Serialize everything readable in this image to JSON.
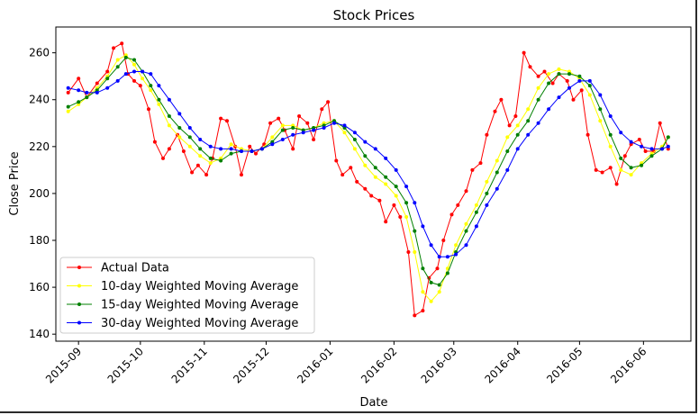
{
  "chart_data": {
    "type": "line",
    "title": "Stock Prices",
    "xlabel": "Date",
    "ylabel": "Close Price",
    "x_ticks": [
      "2015-09",
      "2015-10",
      "2015-11",
      "2015-12",
      "2016-01",
      "2016-02",
      "2016-03",
      "2016-04",
      "2016-05",
      "2016-06"
    ],
    "y_ticks": [
      140,
      160,
      180,
      200,
      220,
      240,
      260
    ],
    "ylim": [
      137,
      271
    ],
    "xlim": [
      "2015-08-21",
      "2016-06-24"
    ],
    "grid": false,
    "legend_position": "lower-left",
    "series": [
      {
        "name": "Actual Data",
        "color": "#ff0000",
        "x": [
          "2015-08-27",
          "2015-09-01",
          "2015-09-05",
          "2015-09-10",
          "2015-09-15",
          "2015-09-18",
          "2015-09-22",
          "2015-09-25",
          "2015-09-28",
          "2015-10-01",
          "2015-10-05",
          "2015-10-08",
          "2015-10-12",
          "2015-10-15",
          "2015-10-19",
          "2015-10-22",
          "2015-10-26",
          "2015-10-29",
          "2015-11-02",
          "2015-11-05",
          "2015-11-09",
          "2015-11-12",
          "2015-11-16",
          "2015-11-19",
          "2015-11-23",
          "2015-11-26",
          "2015-11-30",
          "2015-12-03",
          "2015-12-07",
          "2015-12-10",
          "2015-12-14",
          "2015-12-17",
          "2015-12-21",
          "2015-12-24",
          "2015-12-28",
          "2015-12-31",
          "2016-01-04",
          "2016-01-07",
          "2016-01-11",
          "2016-01-14",
          "2016-01-18",
          "2016-01-21",
          "2016-01-25",
          "2016-01-28",
          "2016-02-01",
          "2016-02-04",
          "2016-02-08",
          "2016-02-11",
          "2016-02-15",
          "2016-02-18",
          "2016-02-22",
          "2016-02-25",
          "2016-02-29",
          "2016-03-03",
          "2016-03-07",
          "2016-03-10",
          "2016-03-14",
          "2016-03-17",
          "2016-03-21",
          "2016-03-24",
          "2016-03-28",
          "2016-03-31",
          "2016-04-04",
          "2016-04-07",
          "2016-04-11",
          "2016-04-14",
          "2016-04-18",
          "2016-04-21",
          "2016-04-25",
          "2016-04-28",
          "2016-05-02",
          "2016-05-05",
          "2016-05-09",
          "2016-05-12",
          "2016-05-16",
          "2016-05-19",
          "2016-05-23",
          "2016-05-26",
          "2016-05-30",
          "2016-06-02",
          "2016-06-06",
          "2016-06-09",
          "2016-06-13"
        ],
        "values": [
          243,
          249,
          241,
          247,
          252,
          262,
          264,
          251,
          248,
          246,
          236,
          222,
          215,
          219,
          225,
          218,
          209,
          212,
          208,
          215,
          232,
          231,
          220,
          208,
          220,
          217,
          221,
          230,
          232,
          227,
          219,
          233,
          230,
          223,
          236,
          239,
          214,
          208,
          211,
          205,
          202,
          199,
          197,
          188,
          195,
          190,
          175,
          148,
          150,
          164,
          168,
          180,
          191,
          195,
          201,
          210,
          213,
          225,
          235,
          240,
          229,
          233,
          260,
          254,
          250,
          252,
          247,
          251,
          248,
          240,
          244,
          225,
          210,
          209,
          211,
          204,
          216,
          221,
          223,
          218,
          218,
          230,
          219
        ]
      },
      {
        "name": "10-day Weighted Moving Average",
        "color": "#ffff00",
        "x": [
          "2015-08-27",
          "2015-09-01",
          "2015-09-05",
          "2015-09-10",
          "2015-09-15",
          "2015-09-20",
          "2015-09-24",
          "2015-09-28",
          "2015-10-02",
          "2015-10-06",
          "2015-10-10",
          "2015-10-15",
          "2015-10-20",
          "2015-10-25",
          "2015-10-30",
          "2015-11-04",
          "2015-11-09",
          "2015-11-14",
          "2015-11-19",
          "2015-11-24",
          "2015-11-29",
          "2015-12-04",
          "2015-12-09",
          "2015-12-14",
          "2015-12-19",
          "2015-12-24",
          "2015-12-29",
          "2016-01-03",
          "2016-01-08",
          "2016-01-13",
          "2016-01-18",
          "2016-01-23",
          "2016-01-28",
          "2016-02-02",
          "2016-02-07",
          "2016-02-11",
          "2016-02-15",
          "2016-02-19",
          "2016-02-23",
          "2016-02-27",
          "2016-03-02",
          "2016-03-07",
          "2016-03-12",
          "2016-03-17",
          "2016-03-22",
          "2016-03-27",
          "2016-04-01",
          "2016-04-06",
          "2016-04-11",
          "2016-04-16",
          "2016-04-21",
          "2016-04-26",
          "2016-05-01",
          "2016-05-06",
          "2016-05-11",
          "2016-05-16",
          "2016-05-21",
          "2016-05-26",
          "2016-05-31",
          "2016-06-05",
          "2016-06-10",
          "2016-06-13"
        ],
        "values": [
          235,
          238,
          241,
          245,
          250,
          257,
          259,
          255,
          249,
          244,
          238,
          229,
          224,
          220,
          216,
          213,
          215,
          221,
          219,
          218,
          219,
          224,
          229,
          229,
          227,
          228,
          230,
          231,
          226,
          219,
          212,
          207,
          204,
          199,
          190,
          175,
          158,
          154,
          158,
          168,
          178,
          187,
          195,
          205,
          214,
          224,
          229,
          236,
          245,
          251,
          253,
          252,
          249,
          242,
          231,
          220,
          210,
          208,
          213,
          217,
          220,
          224
        ]
      },
      {
        "name": "15-day Weighted Moving Average",
        "color": "#008000",
        "x": [
          "2015-08-27",
          "2015-09-01",
          "2015-09-05",
          "2015-09-10",
          "2015-09-15",
          "2015-09-20",
          "2015-09-24",
          "2015-09-28",
          "2015-10-02",
          "2015-10-06",
          "2015-10-10",
          "2015-10-15",
          "2015-10-20",
          "2015-10-25",
          "2015-10-30",
          "2015-11-04",
          "2015-11-09",
          "2015-11-14",
          "2015-11-19",
          "2015-11-24",
          "2015-11-29",
          "2015-12-04",
          "2015-12-09",
          "2015-12-14",
          "2015-12-19",
          "2015-12-24",
          "2015-12-29",
          "2016-01-03",
          "2016-01-08",
          "2016-01-13",
          "2016-01-18",
          "2016-01-23",
          "2016-01-28",
          "2016-02-02",
          "2016-02-07",
          "2016-02-11",
          "2016-02-15",
          "2016-02-19",
          "2016-02-23",
          "2016-02-27",
          "2016-03-02",
          "2016-03-07",
          "2016-03-12",
          "2016-03-17",
          "2016-03-22",
          "2016-03-27",
          "2016-04-01",
          "2016-04-06",
          "2016-04-11",
          "2016-04-16",
          "2016-04-21",
          "2016-04-26",
          "2016-05-01",
          "2016-05-06",
          "2016-05-11",
          "2016-05-16",
          "2016-05-21",
          "2016-05-26",
          "2016-05-31",
          "2016-06-05",
          "2016-06-10",
          "2016-06-13"
        ],
        "values": [
          237,
          239,
          241,
          244,
          249,
          254,
          258,
          257,
          252,
          246,
          240,
          233,
          228,
          224,
          219,
          215,
          214,
          217,
          218,
          218,
          219,
          222,
          227,
          228,
          227,
          228,
          229,
          231,
          228,
          223,
          216,
          211,
          207,
          203,
          196,
          184,
          168,
          162,
          161,
          166,
          175,
          184,
          192,
          200,
          209,
          218,
          225,
          231,
          240,
          247,
          251,
          251,
          250,
          246,
          236,
          225,
          215,
          211,
          212,
          216,
          219,
          224
        ]
      },
      {
        "name": "30-day Weighted Moving Average",
        "color": "#0000ff",
        "x": [
          "2015-08-27",
          "2015-09-01",
          "2015-09-05",
          "2015-09-10",
          "2015-09-15",
          "2015-09-20",
          "2015-09-24",
          "2015-09-28",
          "2015-10-02",
          "2015-10-06",
          "2015-10-10",
          "2015-10-15",
          "2015-10-20",
          "2015-10-25",
          "2015-10-30",
          "2015-11-04",
          "2015-11-09",
          "2015-11-14",
          "2015-11-19",
          "2015-11-24",
          "2015-11-29",
          "2015-12-04",
          "2015-12-09",
          "2015-12-14",
          "2015-12-19",
          "2015-12-24",
          "2015-12-29",
          "2016-01-03",
          "2016-01-08",
          "2016-01-13",
          "2016-01-18",
          "2016-01-23",
          "2016-01-28",
          "2016-02-02",
          "2016-02-07",
          "2016-02-11",
          "2016-02-15",
          "2016-02-19",
          "2016-02-23",
          "2016-02-27",
          "2016-03-02",
          "2016-03-07",
          "2016-03-12",
          "2016-03-17",
          "2016-03-22",
          "2016-03-27",
          "2016-04-01",
          "2016-04-06",
          "2016-04-11",
          "2016-04-16",
          "2016-04-21",
          "2016-04-26",
          "2016-05-01",
          "2016-05-06",
          "2016-05-11",
          "2016-05-16",
          "2016-05-21",
          "2016-05-26",
          "2016-05-31",
          "2016-06-05",
          "2016-06-10",
          "2016-06-13"
        ],
        "values": [
          245,
          244,
          243,
          243,
          245,
          248,
          251,
          252,
          252,
          251,
          246,
          240,
          234,
          228,
          223,
          220,
          219,
          219,
          218,
          218,
          219,
          221,
          223,
          225,
          226,
          227,
          228,
          230,
          229,
          226,
          222,
          219,
          215,
          210,
          203,
          196,
          186,
          178,
          173,
          173,
          174,
          178,
          186,
          195,
          202,
          210,
          219,
          225,
          230,
          236,
          241,
          245,
          248,
          248,
          242,
          233,
          226,
          222,
          220,
          219,
          219,
          220
        ]
      }
    ]
  }
}
